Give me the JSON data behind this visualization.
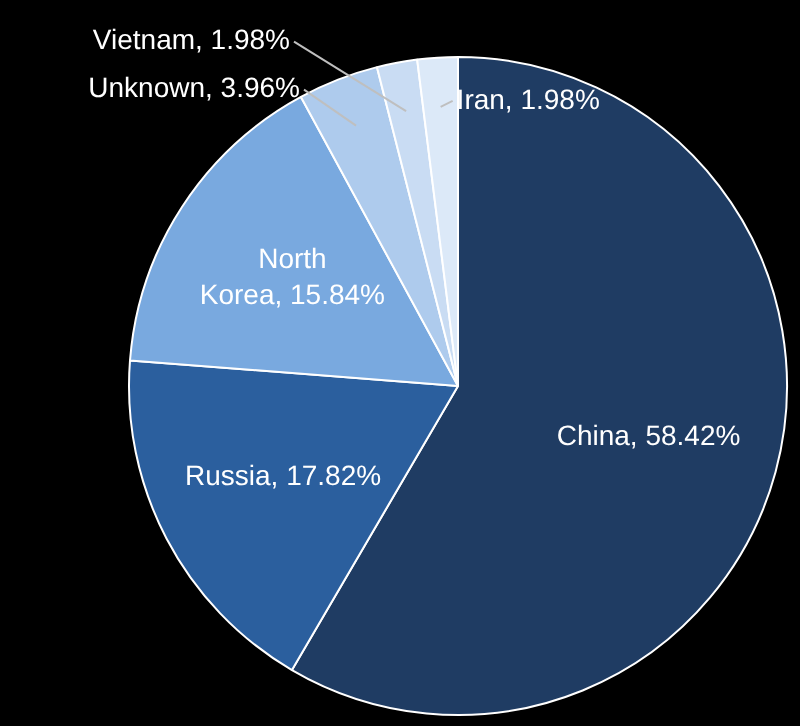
{
  "chart_data": {
    "type": "pie",
    "categories": [
      "China",
      "Russia",
      "North Korea",
      "Unknown",
      "Vietnam",
      "Iran"
    ],
    "values": [
      58.42,
      17.82,
      15.84,
      3.96,
      1.98,
      1.98
    ],
    "value_labels": [
      "58.42%",
      "17.82%",
      "15.84%",
      "3.96%",
      "1.98%",
      "1.98%"
    ],
    "colors": [
      "#1f3c63",
      "#2b5f9e",
      "#79a9df",
      "#aecbed",
      "#c9dcf3",
      "#dce9f8"
    ],
    "legend": false
  }
}
